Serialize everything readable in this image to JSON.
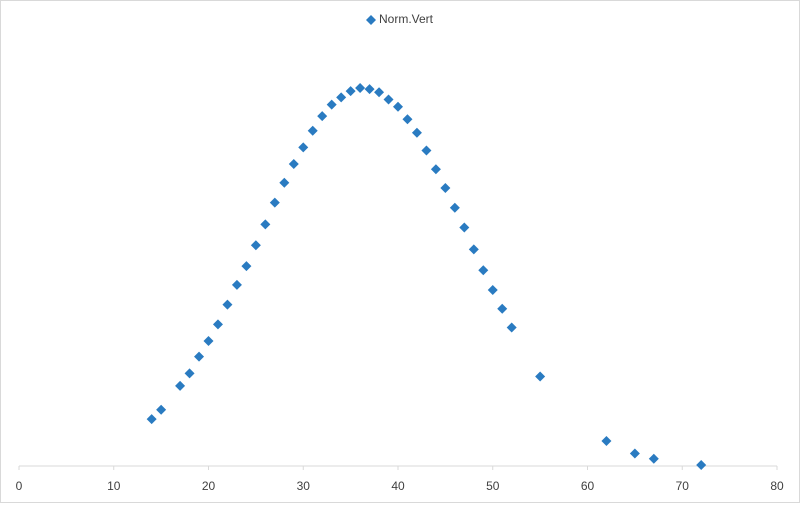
{
  "chart_data": {
    "type": "scatter",
    "series": [
      {
        "name": "Norm.Vert",
        "color": "#2a7bc1",
        "x": [
          14,
          15,
          17,
          18,
          19,
          20,
          21,
          22,
          23,
          24,
          25,
          26,
          27,
          28,
          29,
          30,
          31,
          32,
          33,
          34,
          35,
          36,
          37,
          38,
          39,
          40,
          41,
          42,
          43,
          44,
          45,
          46,
          47,
          48,
          49,
          50,
          51,
          52,
          55,
          62,
          65,
          67,
          72
        ],
        "values": [
          0.0045,
          0.0054,
          0.0077,
          0.0089,
          0.0105,
          0.012,
          0.0136,
          0.0155,
          0.0174,
          0.0192,
          0.0212,
          0.0232,
          0.0253,
          0.0272,
          0.029,
          0.0306,
          0.0322,
          0.0336,
          0.0347,
          0.0354,
          0.036,
          0.0363,
          0.0362,
          0.0359,
          0.0352,
          0.0345,
          0.0333,
          0.032,
          0.0303,
          0.0285,
          0.0267,
          0.0248,
          0.0229,
          0.0208,
          0.0188,
          0.0169,
          0.0151,
          0.0133,
          0.0086,
          0.0024,
          0.0012,
          0.0007,
          0.0001
        ]
      }
    ],
    "xlim": [
      0,
      80
    ],
    "xticks": [
      0,
      10,
      20,
      30,
      40,
      50,
      60,
      70,
      80
    ],
    "ylim": [
      0,
      0.04
    ],
    "legend": "top"
  }
}
